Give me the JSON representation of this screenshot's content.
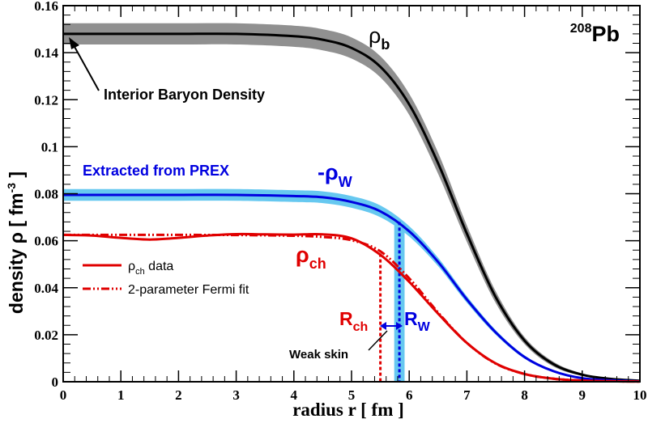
{
  "chart_data": {
    "type": "line",
    "xlabel": "radius r [ fm ]",
    "ylabel": "density  ρ [ fm",
    "ylabel_sup": "-3",
    "ylabel_end": " ]",
    "xlim": [
      0,
      10
    ],
    "ylim": [
      0,
      0.16
    ],
    "xticks": [
      0,
      1,
      2,
      3,
      4,
      5,
      6,
      7,
      8,
      9,
      10
    ],
    "xtick_labels": [
      "0",
      "1",
      "2",
      "3",
      "4",
      "5",
      "6",
      "7",
      "8",
      "9",
      "10"
    ],
    "yticks": [
      0,
      0.02,
      0.04,
      0.06,
      0.08,
      0.1,
      0.12,
      0.14,
      0.16
    ],
    "ytick_labels": [
      "0",
      "0.02",
      "0.04",
      "0.06",
      "0.08",
      "0.1",
      "0.12",
      "0.14",
      "0.16"
    ],
    "grid": false,
    "nucleus_label_sup": "208",
    "nucleus_label": "Pb",
    "series": [
      {
        "name": "ρb",
        "color": "#000000",
        "band_color": "#909090",
        "x": [
          0,
          1,
          2,
          3,
          4,
          4.5,
          5,
          5.5,
          6,
          6.5,
          7,
          7.5,
          8,
          8.5,
          9,
          9.5,
          10
        ],
        "y": [
          0.148,
          0.148,
          0.148,
          0.148,
          0.147,
          0.1455,
          0.142,
          0.134,
          0.118,
          0.093,
          0.063,
          0.036,
          0.0175,
          0.0075,
          0.003,
          0.0012,
          0.0004
        ],
        "band_halfwidth": [
          0.0045,
          0.0045,
          0.0045,
          0.0045,
          0.0045,
          0.0045,
          0.0045,
          0.0045,
          0.0045,
          0.0045,
          0.0035,
          0.0025,
          0.0015,
          0.001,
          0.0005,
          0.0003,
          0.0002
        ]
      },
      {
        "name": "-ρW",
        "color": "#0000e0",
        "band_color": "#66c8f0",
        "x": [
          0,
          1,
          2,
          3,
          4,
          4.5,
          5,
          5.5,
          6,
          6.5,
          7,
          7.5,
          8,
          8.5,
          9,
          9.5,
          10
        ],
        "y": [
          0.0795,
          0.0795,
          0.0795,
          0.0795,
          0.079,
          0.0785,
          0.0765,
          0.0725,
          0.064,
          0.051,
          0.035,
          0.021,
          0.0105,
          0.0045,
          0.0015,
          0.0006,
          0.0002
        ],
        "band_halfwidth": [
          0.0025,
          0.0025,
          0.0025,
          0.0025,
          0.0025,
          0.0025,
          0.0025,
          0.0025,
          0.0022,
          0.0018,
          0.0014,
          0.001,
          0.0007,
          0.0004,
          0.0002,
          0.0001,
          0.0001
        ]
      },
      {
        "name": "ρch data",
        "color": "#e00000",
        "style": "solid",
        "x": [
          0,
          0.5,
          1,
          1.5,
          2,
          2.5,
          3,
          3.5,
          4,
          4.5,
          5,
          5.5,
          6,
          6.5,
          7,
          7.5,
          8,
          8.5,
          9,
          9.5,
          10
        ],
        "y": [
          0.0625,
          0.0622,
          0.0612,
          0.0605,
          0.0612,
          0.0622,
          0.0628,
          0.0627,
          0.0626,
          0.0627,
          0.061,
          0.054,
          0.0425,
          0.029,
          0.0165,
          0.0078,
          0.0033,
          0.0013,
          0.0005,
          0.0002,
          0.0001
        ]
      },
      {
        "name": "2-parameter Fermi fit",
        "color": "#e00000",
        "style": "dashdot",
        "x": [
          0,
          1,
          2,
          3,
          4,
          4.5,
          5,
          5.5,
          6,
          6.5,
          7,
          7.5,
          8,
          8.5,
          9,
          9.5,
          10
        ],
        "y": [
          0.0625,
          0.0625,
          0.0625,
          0.0624,
          0.0621,
          0.0616,
          0.0602,
          0.0555,
          0.044,
          0.0295,
          0.0165,
          0.0077,
          0.0033,
          0.0013,
          0.0005,
          0.0002,
          0.0001
        ]
      }
    ],
    "legend": {
      "placement": "bottom-left",
      "entries": [
        {
          "label": "ρ",
          "sub": "ch",
          "rest": " data",
          "style": "solid"
        },
        {
          "label": "2-parameter Fermi fit",
          "sub": "",
          "rest": "",
          "style": "dashdot"
        }
      ]
    },
    "markers": {
      "rch_x": 5.5,
      "rw_x": 5.83,
      "rw_band_halfwidth": 0.09,
      "rch_top": 0.0545,
      "rw_top": 0.068
    },
    "annotations": {
      "interior": "Interior Baryon Density",
      "prex": "Extracted from PREX",
      "rho_b": "ρ",
      "rho_b_sub": "b",
      "rho_w": "-ρ",
      "rho_w_sub": "W",
      "rho_ch": "ρ",
      "rho_ch_sub": "ch",
      "rch": "R",
      "rch_sub": "ch",
      "rw": "R",
      "rw_sub": "W",
      "weak_skin": "Weak skin"
    }
  }
}
